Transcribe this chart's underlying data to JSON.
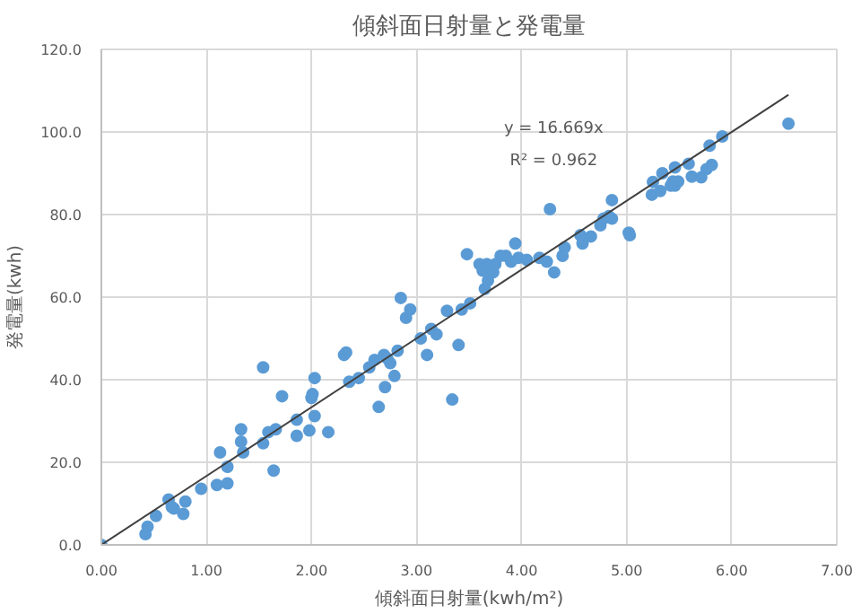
{
  "chart_data": {
    "type": "scatter",
    "title": "傾斜面日射量と発電量",
    "xlabel": "傾斜面日射量(kwh/m²)",
    "ylabel": "発電量(kwh)",
    "annotations": [
      "y = 16.669x",
      "R² = 0.962"
    ],
    "xlim": [
      0,
      7
    ],
    "ylim": [
      0,
      120
    ],
    "xticks": [
      {
        "value": 0,
        "label": "0.00"
      },
      {
        "value": 1,
        "label": "1.00"
      },
      {
        "value": 2,
        "label": "2.00"
      },
      {
        "value": 3,
        "label": "3.00"
      },
      {
        "value": 4,
        "label": "4.00"
      },
      {
        "value": 5,
        "label": "5.00"
      },
      {
        "value": 6,
        "label": "6.00"
      },
      {
        "value": 7,
        "label": "7.00"
      }
    ],
    "yticks": [
      {
        "value": 0,
        "label": "0.0"
      },
      {
        "value": 20,
        "label": "20.0"
      },
      {
        "value": 40,
        "label": "40.0"
      },
      {
        "value": 60,
        "label": "60.0"
      },
      {
        "value": 80,
        "label": "80.0"
      },
      {
        "value": 100,
        "label": "100.0"
      },
      {
        "value": 120,
        "label": "120.0"
      }
    ],
    "grid": true,
    "series": [
      {
        "marker": "circle",
        "color": "#5b9bd5",
        "x": [
          0,
          0.42,
          0.44,
          0.52,
          0.64,
          0.67,
          0.69,
          0.78,
          0.8,
          0.95,
          1.1,
          1.2,
          1.2,
          1.13,
          1.35,
          1.33,
          1.33,
          1.54,
          1.54,
          1.59,
          1.66,
          1.64,
          1.72,
          1.86,
          1.86,
          1.98,
          2.0,
          2.01,
          2.03,
          2.03,
          2.16,
          2.33,
          2.31,
          2.55,
          2.6,
          2.69,
          2.45,
          2.36,
          2.64,
          2.7,
          2.75,
          2.79,
          2.72,
          2.82,
          2.85,
          2.94,
          2.9,
          3.04,
          3.1,
          3.14,
          3.19,
          3.29,
          3.4,
          3.34,
          3.43,
          3.51,
          3.65,
          3.63,
          3.68,
          3.73,
          3.48,
          3.6,
          3.67,
          3.94,
          3.85,
          3.8,
          3.75,
          3.9,
          3.97,
          4.05,
          4.17,
          4.24,
          4.31,
          4.39,
          4.41,
          4.27,
          4.56,
          4.58,
          4.66,
          4.75,
          4.78,
          4.83,
          4.86,
          4.86,
          5.03,
          5.02,
          5.24,
          5.25,
          5.32,
          5.34,
          5.42,
          5.44,
          5.46,
          5.49,
          5.46,
          5.59,
          5.62,
          5.71,
          5.76,
          5.79,
          5.81,
          5.91,
          6.54
        ],
        "values": [
          0,
          2.6,
          4.4,
          7,
          11,
          9.2,
          8.8,
          7.5,
          10.5,
          13.6,
          14.5,
          18.9,
          14.9,
          22.4,
          22.4,
          25,
          28,
          43,
          24.6,
          27.3,
          28,
          18,
          36,
          30.3,
          26.4,
          27.7,
          35.6,
          36.5,
          31.2,
          40.4,
          27.3,
          46.6,
          46,
          43,
          44.8,
          46,
          40.4,
          39.5,
          33.4,
          38.2,
          44,
          40.9,
          45.2,
          47,
          59.8,
          57,
          55,
          50,
          46,
          52.3,
          51,
          56.7,
          48.4,
          35.2,
          57,
          58.5,
          62,
          66.4,
          64,
          66,
          70.4,
          68,
          68,
          73,
          70,
          70,
          68,
          68.6,
          69.5,
          69,
          69.5,
          68.6,
          66,
          70,
          72,
          81.3,
          75,
          73,
          74.7,
          77.4,
          79,
          79.6,
          83.5,
          79,
          75,
          75.6,
          84.8,
          87.9,
          85.7,
          90,
          87,
          88,
          87,
          88,
          91.4,
          92.3,
          89.2,
          89,
          91,
          96.7,
          92,
          98.9,
          102
        ]
      },
      {
        "type": "line",
        "color": "#404040",
        "x": [
          0,
          6.54
        ],
        "values": [
          0,
          109.0
        ]
      }
    ]
  }
}
